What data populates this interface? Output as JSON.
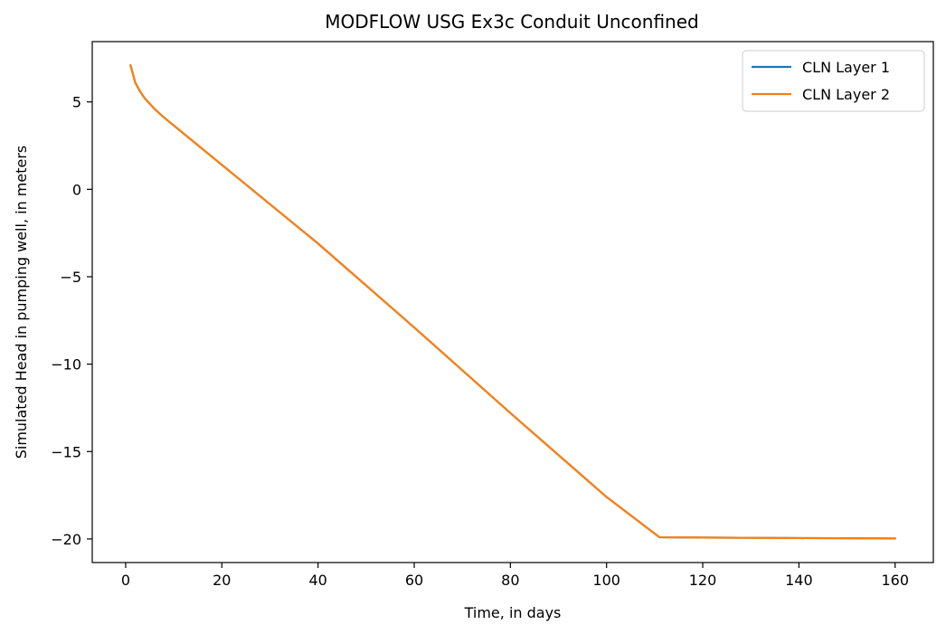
{
  "chart_data": {
    "type": "line",
    "title": "MODFLOW USG Ex3c Conduit Unconfined",
    "xlabel": "Time, in days",
    "ylabel": "Simulated Head in pumping well, in meters",
    "xlim": [
      -6.95,
      167.95
    ],
    "ylim": [
      -21.35,
      8.45
    ],
    "xticks": [
      0,
      20,
      40,
      60,
      80,
      100,
      120,
      140,
      160
    ],
    "yticks": [
      -20,
      -15,
      -10,
      -5,
      0,
      5
    ],
    "ytick_labels": [
      "−20",
      "−15",
      "−10",
      "−5",
      "0",
      "5"
    ],
    "legend_position": "top-right",
    "grid": false,
    "series": [
      {
        "name": "CLN Layer 1",
        "color": "#1f77b4",
        "x": [
          1,
          2,
          3,
          4,
          5,
          6,
          8,
          10,
          20,
          40,
          60,
          80,
          100,
          111,
          120,
          140,
          160
        ],
        "y": [
          7.1,
          6.1,
          5.6,
          5.2,
          4.9,
          4.6,
          4.1,
          3.65,
          1.4,
          -3.1,
          -7.9,
          -12.8,
          -17.6,
          -19.9,
          -19.92,
          -19.95,
          -19.97
        ]
      },
      {
        "name": "CLN Layer 2",
        "color": "#ff7f0e",
        "x": [
          1,
          2,
          3,
          4,
          5,
          6,
          8,
          10,
          20,
          40,
          60,
          80,
          100,
          111,
          120,
          140,
          160
        ],
        "y": [
          7.1,
          6.1,
          5.6,
          5.2,
          4.9,
          4.6,
          4.1,
          3.65,
          1.4,
          -3.1,
          -7.9,
          -12.8,
          -17.6,
          -19.9,
          -19.92,
          -19.95,
          -19.97
        ]
      }
    ]
  }
}
